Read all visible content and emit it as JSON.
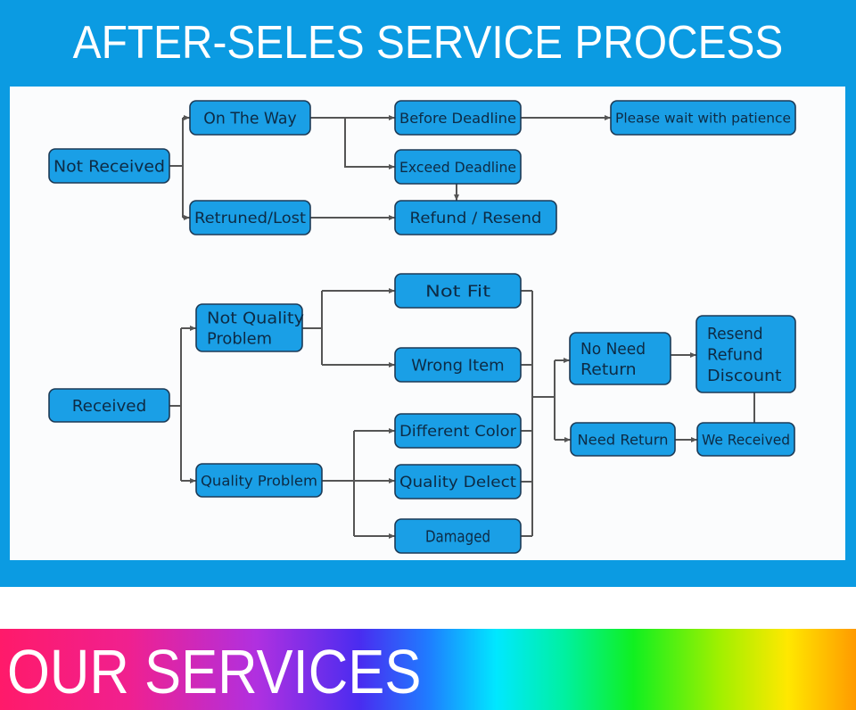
{
  "header": {
    "title": "AFTER-SELES SERVICE PROCESS"
  },
  "footer": {
    "banner": "OUR SERVICES"
  },
  "colors": {
    "banner_blue": "#0b9be2",
    "node_fill": "#1a9fe6",
    "node_border": "#1c3a56",
    "connector": "#555555"
  },
  "diagram": {
    "nodes": {
      "not_received": [
        "Not Received"
      ],
      "on_the_way": [
        "On The Way"
      ],
      "returned_lost": [
        "Retruned/Lost"
      ],
      "before_deadline": [
        "Before Deadline"
      ],
      "exceed_deadline": [
        "Exceed Deadline"
      ],
      "refund_resend": [
        "Refund / Resend"
      ],
      "please_wait": [
        "Please wait with patience"
      ],
      "received": [
        "Received"
      ],
      "not_quality_problem": [
        "Not Quality",
        "Problem"
      ],
      "quality_problem": [
        "Quality Problem"
      ],
      "not_fit": [
        "Not Fit"
      ],
      "wrong_item": [
        "Wrong Item"
      ],
      "different_color": [
        "Different Color"
      ],
      "quality_defect": [
        "Quality Delect"
      ],
      "damaged": [
        "Damaged"
      ],
      "no_need_return": [
        "No Need",
        "Return"
      ],
      "resend_refund_discount": [
        "Resend",
        "Refund",
        "Discount"
      ],
      "need_return": [
        "Need Return"
      ],
      "we_received": [
        "We Received"
      ]
    }
  }
}
